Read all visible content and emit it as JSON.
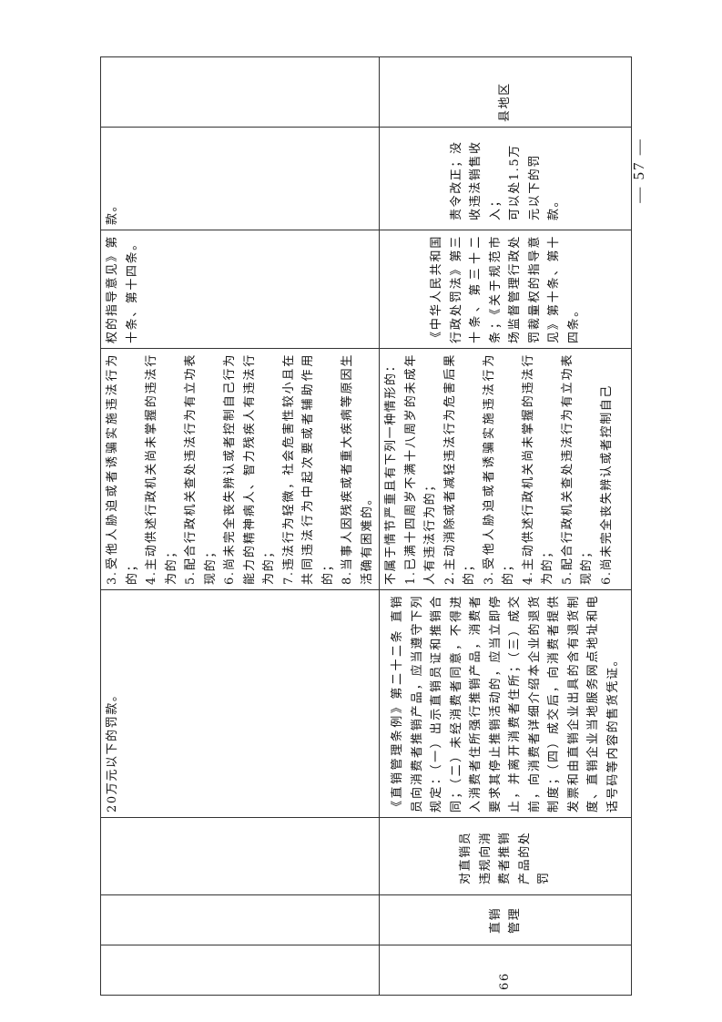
{
  "page_number": "— 57 —",
  "rows": [
    {
      "number": "",
      "category": "",
      "item": "",
      "legal_basis": "20万元以下的罚款。",
      "conditions": [
        "3.受他人胁迫或者诱骗实施违法行为的；",
        "4.主动供述行政机关尚未掌握的违法行为的；",
        "5.配合行政机关查处违法行为有立功表现的；",
        "6.尚未完全丧失辨认或者控制自己行为能力的精神病人、智力残疾人有违法行为的；",
        "7.违法行为轻微，社会危害性较小且在共同违法行为中起次要或者辅助作用的；",
        "8.当事人因残疾或者重大疾病等原因生活确有困难的。"
      ],
      "basis": "权的指导意见》第十条、第十四条。",
      "penalty": [
        "款。"
      ],
      "level": ""
    },
    {
      "number": "66",
      "category": "直销管理",
      "item": "对直销员违规向消费者推销产品的处罚",
      "legal_basis": "《直销管理条例》第二十二条 直销员向消费者推销产品，应当遵守下列规定：（一）出示直销员证和推销合同；（二）未经消费者同意，不得进入消费者住所强行推销产品，消费者要求其停止推销活动的，应当立即停止，并离开消费者住所；（三）成交前，向消费者详细介绍本企业的退货制度；（四）成交后，向消费者提供发票和由直销企业出具的含有退货制度、直销企业当地服务网点地址和电话号码等内容的售货凭证。",
      "conditions": [
        "不属于情节严重且有下列一种情形的：",
        "1.已满十四周岁不满十八周岁的未成年人有违法行为的；",
        "2.主动消除或者减轻违法行为危害后果的；",
        "3.受他人胁迫或者诱骗实施违法行为的；",
        "4.主动供述行政机关尚未掌握的违法行为的；",
        "5.配合行政机关查处违法行为有立功表现的；",
        "6.尚未完全丧失辨认或者控制自己"
      ],
      "basis": "《中华人民共和国行政处罚法》第三十条、第三十二条；《关于规范市场监督管理行政处罚裁量权的指导意见》第十条、第十四条。",
      "penalty": [
        "责令改正；没收违法销售收入；",
        "可以处1.5万元以下的罚款。"
      ],
      "level": "县地区"
    }
  ]
}
